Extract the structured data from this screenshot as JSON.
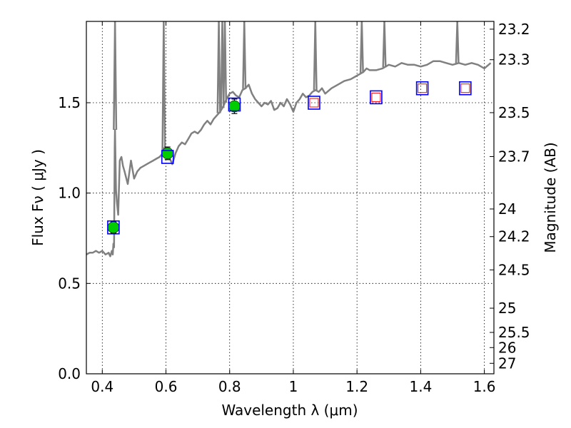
{
  "chart_data": {
    "type": "line",
    "xlabel": "Wavelength  λ (μm)",
    "ylabel": "Flux  Fν  ( μJy )",
    "ylabel_right": "Magnitude (AB)",
    "xlim": [
      0.35,
      1.63
    ],
    "ylim": [
      0.0,
      1.95
    ],
    "grid": true,
    "x_ticks": [
      0.4,
      0.6,
      0.8,
      1.0,
      1.2,
      1.4,
      1.6
    ],
    "x_tick_labels": [
      "0.4",
      "0.6",
      "0.8",
      "1",
      "1.2",
      "1.4",
      "1.6"
    ],
    "y_ticks": [
      0.0,
      0.5,
      1.0,
      1.5
    ],
    "y_tick_labels": [
      "0.0",
      "0.5",
      "1.0",
      "1.5"
    ],
    "right_ticks": [
      {
        "label": "23.2",
        "flux": 1.907
      },
      {
        "label": "23.3",
        "flux": 1.738
      },
      {
        "label": "23.5",
        "flux": 1.445
      },
      {
        "label": "23.7",
        "flux": 1.202
      },
      {
        "label": "24",
        "flux": 0.912
      },
      {
        "label": "24.2",
        "flux": 0.759
      },
      {
        "label": "24.5",
        "flux": 0.575
      },
      {
        "label": "25",
        "flux": 0.363
      },
      {
        "label": "25.5",
        "flux": 0.229
      },
      {
        "label": "26",
        "flux": 0.145
      },
      {
        "label": "27",
        "flux": 0.058
      }
    ],
    "series": [
      {
        "kind": "model_spectrum",
        "color": "#808080",
        "x": [
          0.35,
          0.36,
          0.37,
          0.38,
          0.39,
          0.4,
          0.41,
          0.42,
          0.425,
          0.43,
          0.433,
          0.435,
          0.437,
          0.439,
          0.44,
          0.443,
          0.446,
          0.45,
          0.455,
          0.46,
          0.465,
          0.47,
          0.48,
          0.49,
          0.5,
          0.51,
          0.52,
          0.53,
          0.54,
          0.55,
          0.56,
          0.57,
          0.58,
          0.59,
          0.595,
          0.6,
          0.61,
          0.62,
          0.63,
          0.64,
          0.65,
          0.66,
          0.67,
          0.68,
          0.69,
          0.7,
          0.71,
          0.72,
          0.73,
          0.74,
          0.75,
          0.76,
          0.77,
          0.78,
          0.79,
          0.8,
          0.81,
          0.82,
          0.83,
          0.84,
          0.85,
          0.86,
          0.87,
          0.88,
          0.89,
          0.9,
          0.91,
          0.92,
          0.93,
          0.94,
          0.95,
          0.96,
          0.97,
          0.98,
          0.99,
          1.0,
          1.01,
          1.02,
          1.03,
          1.04,
          1.05,
          1.06,
          1.07,
          1.08,
          1.09,
          1.1,
          1.12,
          1.14,
          1.16,
          1.18,
          1.2,
          1.22,
          1.23,
          1.24,
          1.26,
          1.28,
          1.3,
          1.32,
          1.34,
          1.36,
          1.38,
          1.4,
          1.42,
          1.44,
          1.46,
          1.48,
          1.5,
          1.52,
          1.54,
          1.56,
          1.58,
          1.6,
          1.62
        ],
        "y": [
          0.66,
          0.67,
          0.67,
          0.68,
          0.67,
          0.68,
          0.66,
          0.67,
          0.65,
          0.68,
          0.66,
          0.72,
          0.7,
          1.25,
          1.35,
          1.02,
          0.95,
          0.88,
          1.18,
          1.2,
          1.15,
          1.12,
          1.05,
          1.18,
          1.08,
          1.12,
          1.14,
          1.15,
          1.16,
          1.17,
          1.18,
          1.19,
          1.2,
          1.22,
          1.25,
          1.22,
          1.2,
          1.16,
          1.22,
          1.26,
          1.28,
          1.27,
          1.3,
          1.33,
          1.34,
          1.33,
          1.35,
          1.38,
          1.4,
          1.38,
          1.41,
          1.43,
          1.45,
          1.48,
          1.52,
          1.55,
          1.56,
          1.54,
          1.53,
          1.57,
          1.58,
          1.6,
          1.55,
          1.52,
          1.5,
          1.48,
          1.5,
          1.49,
          1.51,
          1.46,
          1.47,
          1.5,
          1.48,
          1.52,
          1.49,
          1.45,
          1.5,
          1.52,
          1.55,
          1.53,
          1.54,
          1.56,
          1.57,
          1.56,
          1.58,
          1.55,
          1.58,
          1.6,
          1.62,
          1.63,
          1.65,
          1.67,
          1.69,
          1.68,
          1.68,
          1.69,
          1.71,
          1.7,
          1.72,
          1.71,
          1.71,
          1.7,
          1.71,
          1.73,
          1.73,
          1.72,
          1.71,
          1.72,
          1.71,
          1.72,
          1.71,
          1.69,
          1.72
        ]
      },
      {
        "kind": "emission_lines",
        "color": "#808080",
        "lines": [
          {
            "x": 0.44,
            "peak": 1.95
          },
          {
            "x": 0.593,
            "peak": 1.95
          },
          {
            "x": 0.766,
            "peak": 1.95
          },
          {
            "x": 0.777,
            "peak": 1.95
          },
          {
            "x": 0.785,
            "peak": 1.95
          },
          {
            "x": 0.846,
            "peak": 1.95
          },
          {
            "x": 1.069,
            "peak": 1.95
          },
          {
            "x": 1.215,
            "peak": 1.95
          },
          {
            "x": 1.286,
            "peak": 1.95
          },
          {
            "x": 1.515,
            "peak": 1.95
          }
        ]
      },
      {
        "kind": "observed_photometry",
        "color": "#00cc00",
        "x": [
          0.435,
          0.605,
          0.815
        ],
        "y": [
          0.81,
          1.22,
          1.48
        ],
        "yerr": [
          0.03,
          0.035,
          0.04
        ]
      },
      {
        "kind": "model_photometry",
        "color": "#0000ff",
        "x": [
          0.435,
          0.605,
          0.815,
          1.065,
          1.26,
          1.405,
          1.54
        ],
        "y": [
          0.81,
          1.2,
          1.49,
          1.5,
          1.53,
          1.58,
          1.58
        ]
      },
      {
        "kind": "model_photometry_inner",
        "color": "#ff0000",
        "x": [
          1.065,
          1.26,
          1.405,
          1.54
        ],
        "y": [
          1.5,
          1.53,
          1.58,
          1.58
        ]
      }
    ]
  }
}
